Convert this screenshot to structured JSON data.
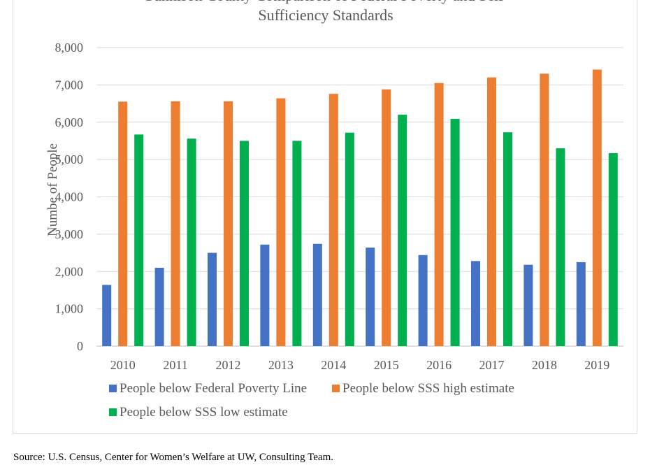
{
  "chart_data": {
    "type": "bar",
    "title_lines": [
      "Gunnison County Comparison of Federal Poverty and Self-",
      "Sufficiency Standards"
    ],
    "xlabel": "",
    "ylabel": "Numbe of People",
    "ylim": [
      0,
      8000
    ],
    "yticks": [
      0,
      1000,
      2000,
      3000,
      4000,
      5000,
      6000,
      7000,
      8000
    ],
    "ytick_labels": [
      "0",
      "1,000",
      "2,000",
      "3,000",
      "4,000",
      "5,000",
      "6,000",
      "7,000",
      "8,000"
    ],
    "grid": true,
    "legend_position": "bottom",
    "categories": [
      "2010",
      "2011",
      "2012",
      "2013",
      "2014",
      "2015",
      "2016",
      "2017",
      "2018",
      "2019"
    ],
    "series": [
      {
        "name": "People below Federal Poverty Line",
        "color": "#4472c4",
        "values": [
          1640,
          2100,
          2500,
          2720,
          2740,
          2640,
          2440,
          2280,
          2180,
          2250
        ]
      },
      {
        "name": "People below SSS high estimate",
        "color": "#ed7d31",
        "values": [
          6550,
          6560,
          6560,
          6640,
          6760,
          6880,
          7050,
          7200,
          7300,
          7410
        ]
      },
      {
        "name": "People below SSS low estimate",
        "color": "#00b050",
        "values": [
          5670,
          5560,
          5500,
          5500,
          5720,
          6200,
          6090,
          5730,
          5300,
          5170
        ]
      }
    ]
  },
  "source_text": "Source: U.S. Census, Center for Women’s Welfare at UW, Consulting Team."
}
